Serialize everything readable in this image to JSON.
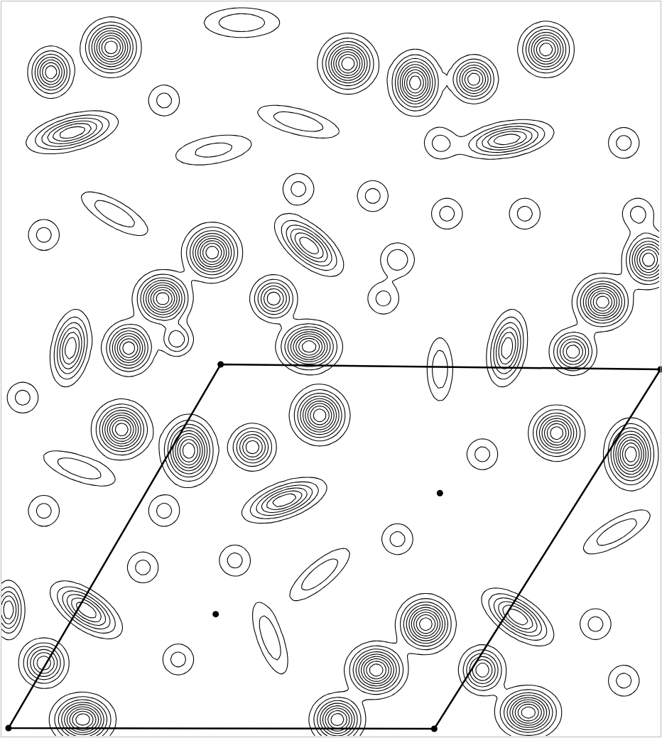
{
  "chart_data": {
    "type": "contour",
    "tick_labels": false,
    "grid": false,
    "color": "#000000",
    "xlim": [
      0,
      932
    ],
    "ylim": [
      1039,
      0
    ],
    "levels": {
      "start": 1,
      "end": 12,
      "size": 1
    },
    "peaks": [
      {
        "x": 155,
        "y": 65,
        "height": 10,
        "sx": 20,
        "sy": 20,
        "tilt": 0
      },
      {
        "x": 70,
        "y": 100,
        "height": 8,
        "sx": 16,
        "sy": 18,
        "tilt": 0
      },
      {
        "x": 490,
        "y": 88,
        "height": 10,
        "sx": 20,
        "sy": 20,
        "tilt": 0
      },
      {
        "x": 585,
        "y": 115,
        "height": 10,
        "sx": 18,
        "sy": 22,
        "tilt": 0
      },
      {
        "x": 668,
        "y": 110,
        "height": 8,
        "sx": 17,
        "sy": 17,
        "tilt": 0
      },
      {
        "x": 770,
        "y": 68,
        "height": 9,
        "sx": 19,
        "sy": 19,
        "tilt": 0
      },
      {
        "x": 100,
        "y": 185,
        "height": 7,
        "sx": 34,
        "sy": 13,
        "tilt": -15
      },
      {
        "x": 715,
        "y": 195,
        "height": 7,
        "sx": 34,
        "sy": 13,
        "tilt": -10
      },
      {
        "x": 298,
        "y": 355,
        "height": 10,
        "sx": 20,
        "sy": 20,
        "tilt": 0
      },
      {
        "x": 435,
        "y": 345,
        "height": 7,
        "sx": 30,
        "sy": 14,
        "tilt": 40
      },
      {
        "x": 228,
        "y": 420,
        "height": 10,
        "sx": 20,
        "sy": 19,
        "tilt": 0
      },
      {
        "x": 385,
        "y": 420,
        "height": 7,
        "sx": 17,
        "sy": 17,
        "tilt": 0
      },
      {
        "x": 180,
        "y": 490,
        "height": 9,
        "sx": 18,
        "sy": 19,
        "tilt": 0
      },
      {
        "x": 98,
        "y": 490,
        "height": 7,
        "sx": 14,
        "sy": 28,
        "tilt": 10
      },
      {
        "x": 435,
        "y": 488,
        "height": 10,
        "sx": 22,
        "sy": 18,
        "tilt": 0
      },
      {
        "x": 248,
        "y": 478,
        "height": 4,
        "sx": 14,
        "sy": 14,
        "tilt": 0
      },
      {
        "x": 850,
        "y": 425,
        "height": 10,
        "sx": 20,
        "sy": 19,
        "tilt": 0
      },
      {
        "x": 915,
        "y": 365,
        "height": 9,
        "sx": 18,
        "sy": 20,
        "tilt": 0
      },
      {
        "x": 808,
        "y": 495,
        "height": 7,
        "sx": 17,
        "sy": 17,
        "tilt": 0
      },
      {
        "x": 715,
        "y": 490,
        "height": 7,
        "sx": 14,
        "sy": 28,
        "tilt": 10
      },
      {
        "x": 170,
        "y": 605,
        "height": 10,
        "sx": 20,
        "sy": 20,
        "tilt": 0
      },
      {
        "x": 265,
        "y": 635,
        "height": 10,
        "sx": 19,
        "sy": 24,
        "tilt": 0
      },
      {
        "x": 355,
        "y": 630,
        "height": 7,
        "sx": 17,
        "sy": 17,
        "tilt": 0
      },
      {
        "x": 450,
        "y": 585,
        "height": 10,
        "sx": 20,
        "sy": 20,
        "tilt": 0
      },
      {
        "x": 400,
        "y": 705,
        "height": 7,
        "sx": 32,
        "sy": 13,
        "tilt": -20
      },
      {
        "x": 785,
        "y": 610,
        "height": 9,
        "sx": 19,
        "sy": 19,
        "tilt": 0
      },
      {
        "x": 890,
        "y": 640,
        "height": 10,
        "sx": 18,
        "sy": 24,
        "tilt": 0
      },
      {
        "x": 120,
        "y": 860,
        "height": 7,
        "sx": 30,
        "sy": 14,
        "tilt": 35
      },
      {
        "x": 600,
        "y": 880,
        "height": 10,
        "sx": 20,
        "sy": 20,
        "tilt": 0
      },
      {
        "x": 530,
        "y": 945,
        "height": 10,
        "sx": 21,
        "sy": 19,
        "tilt": 0
      },
      {
        "x": 475,
        "y": 1015,
        "height": 9,
        "sx": 19,
        "sy": 18,
        "tilt": 0
      },
      {
        "x": 680,
        "y": 945,
        "height": 7,
        "sx": 17,
        "sy": 18,
        "tilt": 0
      },
      {
        "x": 115,
        "y": 1015,
        "height": 10,
        "sx": 22,
        "sy": 18,
        "tilt": 0
      },
      {
        "x": 60,
        "y": 935,
        "height": 7,
        "sx": 18,
        "sy": 18,
        "tilt": 0
      },
      {
        "x": 745,
        "y": 1005,
        "height": 10,
        "sx": 22,
        "sy": 18,
        "tilt": 0
      },
      {
        "x": 730,
        "y": 870,
        "height": 7,
        "sx": 30,
        "sy": 14,
        "tilt": 35
      },
      {
        "x": 10,
        "y": 860,
        "height": 6,
        "sx": 12,
        "sy": 22,
        "tilt": 0
      },
      {
        "x": 300,
        "y": 210,
        "height": 2.5,
        "sx": 40,
        "sy": 14,
        "tilt": -10
      },
      {
        "x": 420,
        "y": 265,
        "height": 2.5,
        "sx": 16,
        "sy": 16,
        "tilt": 0
      },
      {
        "x": 525,
        "y": 275,
        "height": 2.5,
        "sx": 16,
        "sy": 16,
        "tilt": 0
      },
      {
        "x": 630,
        "y": 300,
        "height": 2.5,
        "sx": 16,
        "sy": 16,
        "tilt": 0
      },
      {
        "x": 740,
        "y": 300,
        "height": 2.5,
        "sx": 16,
        "sy": 16,
        "tilt": 0
      },
      {
        "x": 60,
        "y": 330,
        "height": 2.5,
        "sx": 16,
        "sy": 16,
        "tilt": 0
      },
      {
        "x": 160,
        "y": 300,
        "height": 3,
        "sx": 36,
        "sy": 12,
        "tilt": 30
      },
      {
        "x": 560,
        "y": 365,
        "height": 3,
        "sx": 16,
        "sy": 16,
        "tilt": 0
      },
      {
        "x": 540,
        "y": 420,
        "height": 2.5,
        "sx": 16,
        "sy": 16,
        "tilt": 0
      },
      {
        "x": 620,
        "y": 520,
        "height": 3,
        "sx": 12,
        "sy": 30,
        "tilt": 0
      },
      {
        "x": 110,
        "y": 660,
        "height": 3,
        "sx": 36,
        "sy": 12,
        "tilt": 20
      },
      {
        "x": 60,
        "y": 720,
        "height": 2.5,
        "sx": 16,
        "sy": 16,
        "tilt": 0
      },
      {
        "x": 230,
        "y": 720,
        "height": 2.5,
        "sx": 16,
        "sy": 16,
        "tilt": 0
      },
      {
        "x": 330,
        "y": 790,
        "height": 2.5,
        "sx": 16,
        "sy": 16,
        "tilt": 0
      },
      {
        "x": 560,
        "y": 760,
        "height": 2.5,
        "sx": 16,
        "sy": 16,
        "tilt": 0
      },
      {
        "x": 680,
        "y": 640,
        "height": 2.5,
        "sx": 16,
        "sy": 16,
        "tilt": 0
      },
      {
        "x": 200,
        "y": 800,
        "height": 2.5,
        "sx": 16,
        "sy": 16,
        "tilt": 0
      },
      {
        "x": 450,
        "y": 810,
        "height": 3,
        "sx": 36,
        "sy": 12,
        "tilt": -40
      },
      {
        "x": 870,
        "y": 750,
        "height": 3,
        "sx": 36,
        "sy": 12,
        "tilt": -30
      },
      {
        "x": 840,
        "y": 880,
        "height": 2.5,
        "sx": 16,
        "sy": 16,
        "tilt": 0
      },
      {
        "x": 380,
        "y": 900,
        "height": 3,
        "sx": 12,
        "sy": 36,
        "tilt": -20
      },
      {
        "x": 250,
        "y": 930,
        "height": 2.5,
        "sx": 16,
        "sy": 16,
        "tilt": 0
      },
      {
        "x": 880,
        "y": 960,
        "height": 2.5,
        "sx": 16,
        "sy": 16,
        "tilt": 0
      },
      {
        "x": 30,
        "y": 560,
        "height": 2.5,
        "sx": 16,
        "sy": 16,
        "tilt": 0
      },
      {
        "x": 900,
        "y": 300,
        "height": 2.5,
        "sx": 16,
        "sy": 16,
        "tilt": 0
      },
      {
        "x": 880,
        "y": 200,
        "height": 2.5,
        "sx": 16,
        "sy": 16,
        "tilt": 0
      },
      {
        "x": 620,
        "y": 200,
        "height": 2.5,
        "sx": 16,
        "sy": 16,
        "tilt": 0
      },
      {
        "x": 340,
        "y": 30,
        "height": 3,
        "sx": 36,
        "sy": 14,
        "tilt": 0
      },
      {
        "x": 230,
        "y": 140,
        "height": 2.5,
        "sx": 16,
        "sy": 16,
        "tilt": 0
      },
      {
        "x": 420,
        "y": 170,
        "height": 3,
        "sx": 40,
        "sy": 12,
        "tilt": 15
      }
    ],
    "cell": [
      [
        310,
        513
      ],
      [
        932,
        520
      ],
      [
        612,
        1028
      ],
      [
        10,
        1027
      ],
      [
        310,
        513
      ]
    ],
    "points": [
      [
        310,
        513
      ],
      [
        932,
        520
      ],
      [
        612,
        1028
      ],
      [
        10,
        1027
      ],
      [
        620,
        695
      ],
      [
        303,
        866
      ]
    ]
  }
}
